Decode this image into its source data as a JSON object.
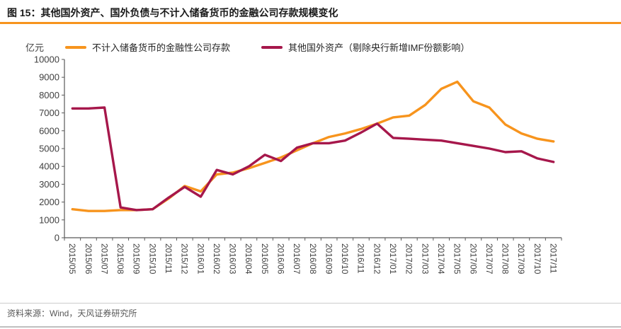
{
  "header": {
    "title": "图 15：其他国外资产、国外负债与不计入储备货币的金融公司存款规模变化"
  },
  "footer": {
    "source": "资料来源：Wind，天风证券研究所"
  },
  "chart_data": {
    "type": "line",
    "title": "其他国外资产、国外负债与不计入储备货币的金融公司存款规模变化",
    "unit_label": "亿元",
    "xlabel": "",
    "ylabel": "亿元",
    "ylim": [
      0,
      10000
    ],
    "ytick_step": 1000,
    "grid": false,
    "legend_position": "top",
    "categories": [
      "2015/05",
      "2015/06",
      "2015/07",
      "2015/08",
      "2015/09",
      "2015/10",
      "2015/11",
      "2015/12",
      "2016/01",
      "2016/02",
      "2016/03",
      "2016/04",
      "2016/05",
      "2016/06",
      "2016/07",
      "2016/08",
      "2016/09",
      "2016/10",
      "2016/11",
      "2016/12",
      "2017/01",
      "2017/02",
      "2017/03",
      "2017/04",
      "2017/05",
      "2017/06",
      "2017/07",
      "2017/08",
      "2017/09",
      "2017/10",
      "2017/11"
    ],
    "series": [
      {
        "name": "不计入储备货币的金融性公司存款",
        "color": "#F7941D",
        "values": [
          1600,
          1500,
          1500,
          1550,
          1550,
          1600,
          2200,
          2900,
          2600,
          3550,
          3650,
          3900,
          4200,
          4500,
          4900,
          5300,
          5650,
          5850,
          6100,
          6400,
          6750,
          6850,
          7450,
          8350,
          8750,
          7650,
          7300,
          6350,
          5850,
          5550,
          5400
        ]
      },
      {
        "name": "其他国外资产（剔除央行新增IMF份额影响）",
        "color": "#A6174B",
        "values": [
          7250,
          7250,
          7300,
          1700,
          1550,
          1600,
          2250,
          2850,
          2300,
          3800,
          3550,
          4000,
          4650,
          4300,
          5050,
          5300,
          5300,
          5450,
          5900,
          6400,
          5600,
          5550,
          5500,
          5450,
          5300,
          5150,
          5000,
          4800,
          4850,
          4450,
          4250
        ]
      }
    ]
  }
}
